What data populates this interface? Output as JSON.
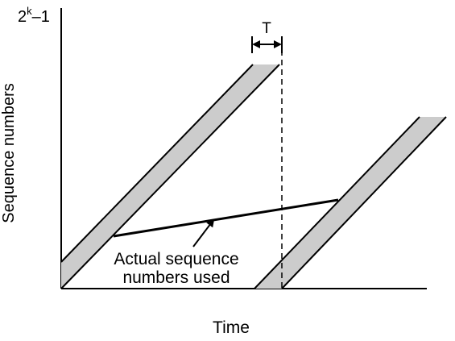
{
  "diagram": {
    "y_axis_label": "Sequence numbers",
    "y_max_label_base": "2",
    "y_max_label_exp": "k",
    "y_max_label_tail": "–1",
    "x_axis_label": "Time",
    "interval_label": "T",
    "annotation_line1": "Actual sequence",
    "annotation_line2": "numbers used",
    "band_fill": "#cccccc",
    "line_color": "#000000"
  }
}
